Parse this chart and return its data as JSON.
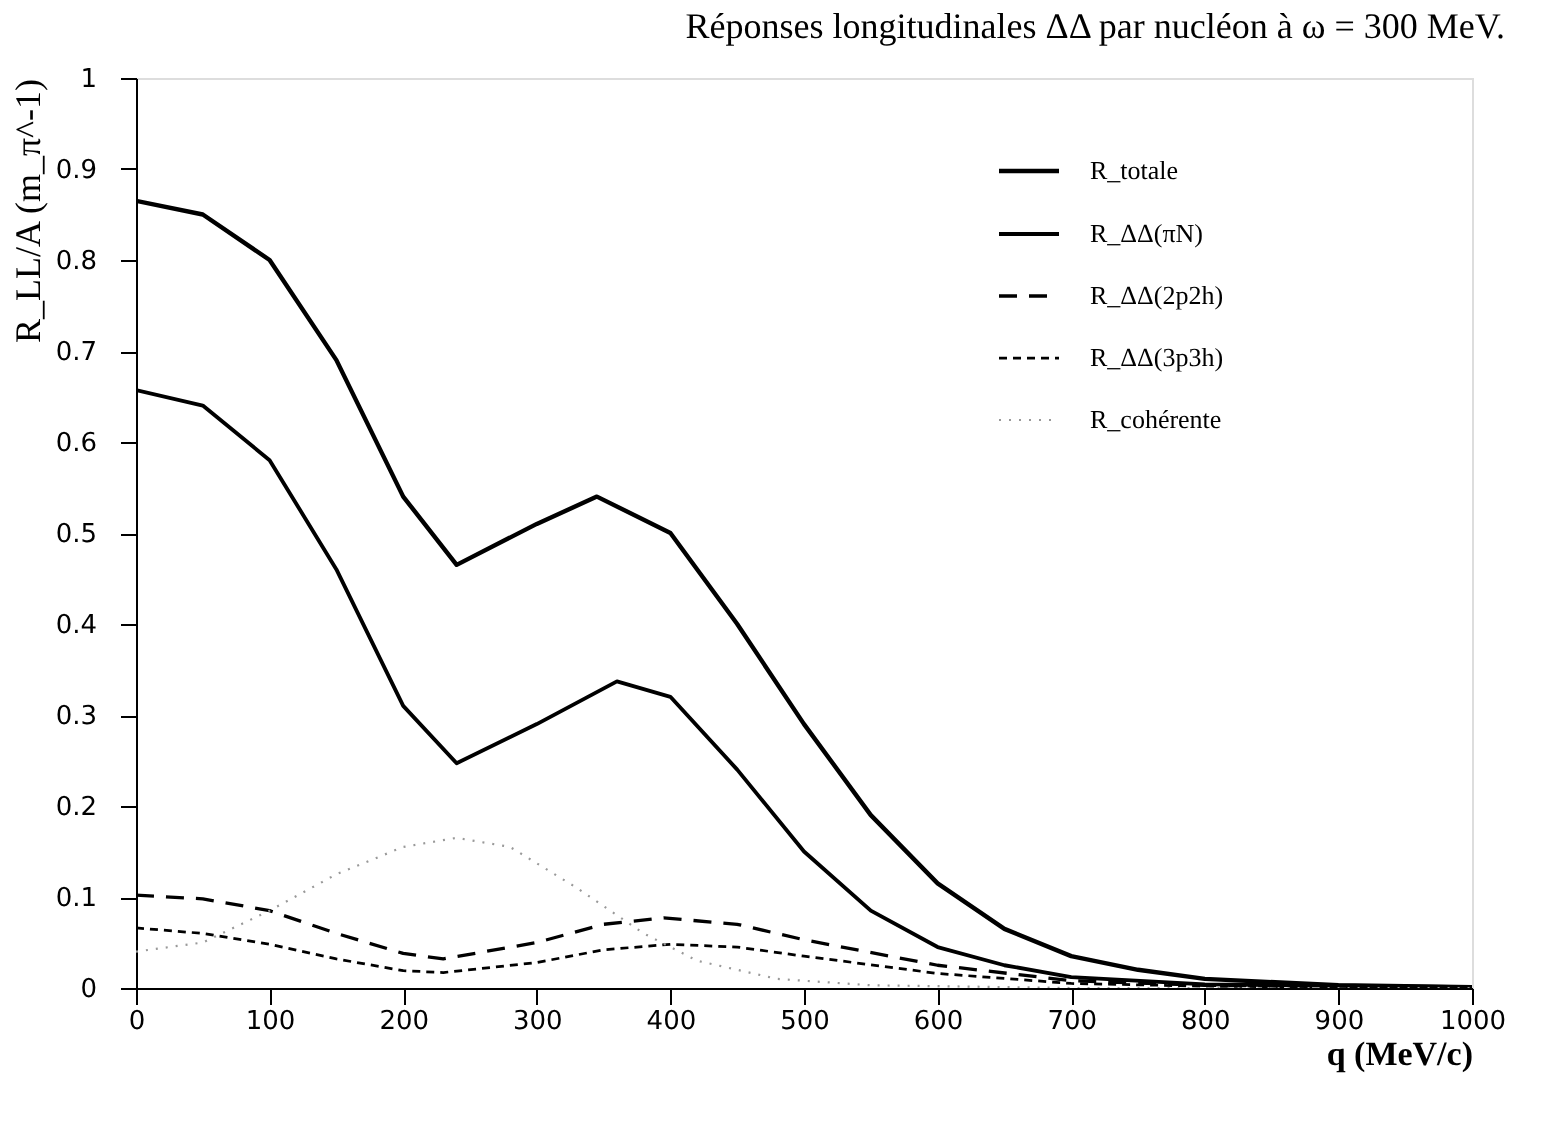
{
  "chart_data": {
    "type": "line",
    "title": "Réponses longitudinales ΔΔ par nucléon à ω = 300 MeV.",
    "xlabel": "q (MeV/c)",
    "ylabel": "R_LL/A (m_π^-1)",
    "xlim": [
      0,
      1000
    ],
    "ylim": [
      0,
      1
    ],
    "xticks": [
      0,
      100,
      200,
      300,
      400,
      500,
      600,
      700,
      800,
      900,
      1000
    ],
    "yticks": [
      0,
      0.1,
      0.2,
      0.3,
      0.4,
      0.5,
      0.6,
      0.7,
      0.8,
      0.9,
      1
    ],
    "grid": false,
    "legend": "top right",
    "series": [
      {
        "name": "R_totale",
        "color": "#000000",
        "line_style": "solid",
        "x": [
          0,
          50,
          100,
          150,
          200,
          240,
          300,
          345,
          400,
          450,
          500,
          550,
          600,
          650,
          700,
          750,
          800,
          900,
          1000
        ],
        "values": [
          0.865,
          0.85,
          0.8,
          0.69,
          0.54,
          0.465,
          0.51,
          0.54,
          0.5,
          0.4,
          0.29,
          0.19,
          0.115,
          0.065,
          0.035,
          0.02,
          0.01,
          0.003,
          0.001
        ]
      },
      {
        "name": "R_ΔΔ(πN)",
        "color": "#000000",
        "line_style": "solid",
        "x": [
          0,
          50,
          100,
          150,
          200,
          240,
          300,
          360,
          400,
          450,
          500,
          550,
          600,
          650,
          700,
          800,
          1000
        ],
        "values": [
          0.657,
          0.64,
          0.58,
          0.46,
          0.31,
          0.247,
          0.29,
          0.337,
          0.32,
          0.24,
          0.15,
          0.085,
          0.045,
          0.025,
          0.012,
          0.004,
          0.001
        ]
      },
      {
        "name": "R_ΔΔ(2p2h)",
        "color": "#000000",
        "line_style": "dashed",
        "x": [
          0,
          50,
          100,
          150,
          200,
          230,
          300,
          350,
          395,
          450,
          500,
          600,
          700,
          800,
          1000
        ],
        "values": [
          0.102,
          0.098,
          0.085,
          0.06,
          0.038,
          0.032,
          0.05,
          0.07,
          0.077,
          0.07,
          0.053,
          0.025,
          0.008,
          0.003,
          0
        ]
      },
      {
        "name": "R_ΔΔ(3p3h)",
        "color": "#000000",
        "line_style": "dashed",
        "x": [
          0,
          50,
          100,
          150,
          200,
          230,
          300,
          350,
          400,
          450,
          500,
          600,
          700,
          800,
          1000
        ],
        "values": [
          0.066,
          0.06,
          0.048,
          0.032,
          0.019,
          0.017,
          0.028,
          0.042,
          0.048,
          0.045,
          0.035,
          0.016,
          0.005,
          0.002,
          0
        ]
      },
      {
        "name": "R_cohérente",
        "color": "#999999",
        "line_style": "dotted",
        "x": [
          0,
          50,
          100,
          150,
          200,
          240,
          280,
          330,
          380,
          420,
          480,
          550,
          700,
          1000
        ],
        "values": [
          0.04,
          0.05,
          0.085,
          0.125,
          0.155,
          0.165,
          0.155,
          0.11,
          0.06,
          0.03,
          0.01,
          0.003,
          0,
          0
        ]
      }
    ]
  }
}
